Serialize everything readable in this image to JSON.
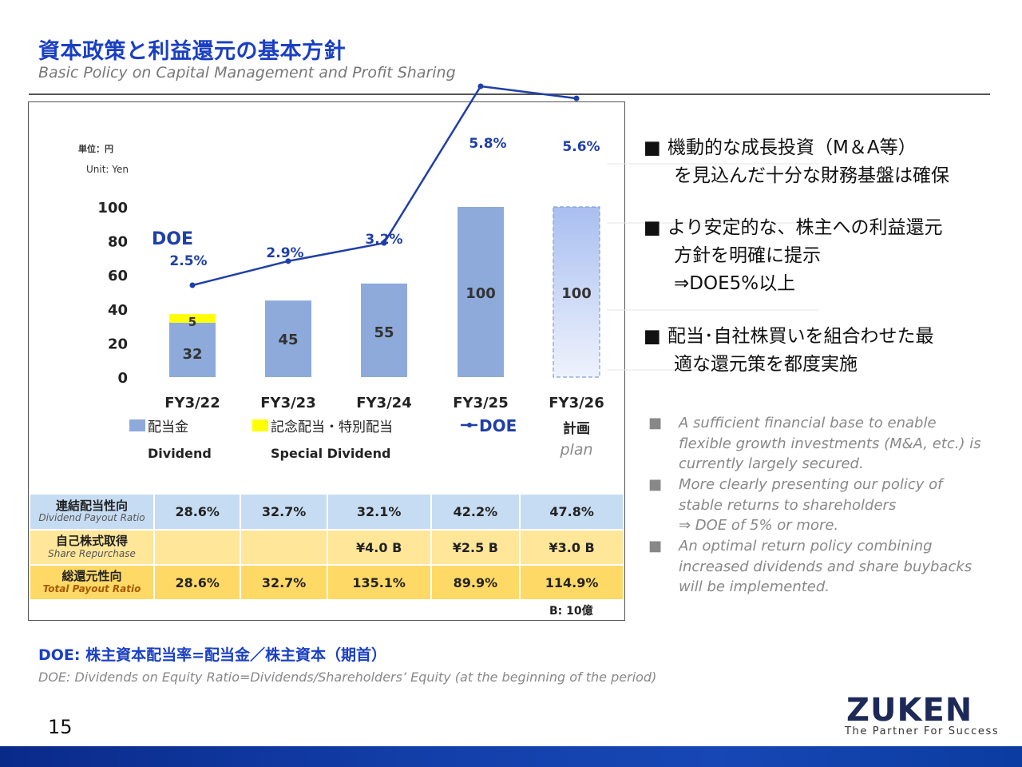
{
  "header": {
    "title": "資本政策と利益還元の基本方針",
    "subtitle": "Basic Policy on Capital Management and Profit Sharing"
  },
  "chart_data": {
    "type": "bar",
    "unit_jp": "単位：円",
    "unit_en": "Unit: Yen",
    "categories": [
      "FY3/22",
      "FY3/23",
      "FY3/24",
      "FY3/25",
      "FY3/26"
    ],
    "plan_label_jp": "計画",
    "plan_label_en": "plan",
    "ylim": [
      0,
      100
    ],
    "y_ticks": [
      0,
      20,
      40,
      60,
      80,
      100
    ],
    "series": [
      {
        "name": "配当金",
        "name_en": "Dividend",
        "type": "bar",
        "color": "#8eaadb",
        "values": [
          32,
          45,
          55,
          100,
          100
        ]
      },
      {
        "name": "記念配当・特別配当",
        "name_en": "Special Dividend",
        "type": "bar",
        "color": "#ffff00",
        "values": [
          5,
          0,
          0,
          0,
          0
        ]
      },
      {
        "name": "DOE",
        "type": "line",
        "color": "#1f3fa8",
        "values": [
          2.5,
          2.9,
          3.2,
          5.8,
          5.6
        ],
        "labels": [
          "2.5%",
          "2.9%",
          "3.2%",
          "5.8%",
          "5.6%"
        ]
      }
    ],
    "doe_axis_label": "DOE",
    "table": {
      "rows": [
        {
          "label_jp": "連結配当性向",
          "label_en": "Dividend Payout Ratio",
          "values": [
            "28.6%",
            "32.7%",
            "32.1%",
            "42.2%",
            "47.8%"
          ]
        },
        {
          "label_jp": "自己株式取得",
          "label_en": "Share Repurchase",
          "values": [
            "",
            "",
            "¥4.0 B",
            "¥2.5 B",
            "¥3.0 B"
          ]
        },
        {
          "label_jp": "総還元性向",
          "label_en": "Total Payout Ratio",
          "values": [
            "28.6%",
            "32.7%",
            "135.1%",
            "89.9%",
            "114.9%"
          ]
        }
      ],
      "unit_note": "B: 10億"
    }
  },
  "bullets_jp": [
    {
      "marker": "■",
      "lines": [
        "機動的な成長投資（M＆A等）",
        "を見込んだ十分な財務基盤は確保"
      ]
    },
    {
      "marker": "■",
      "lines": [
        "より安定的な、株主への利益還元",
        "方針を明確に提示",
        "⇒DOE5%以上"
      ]
    },
    {
      "marker": "■",
      "lines": [
        "配当･自社株買いを組合わせた最",
        "適な還元策を都度実施"
      ]
    }
  ],
  "bullets_en": [
    {
      "marker": "■",
      "lines": [
        "A sufficient financial base to enable",
        "flexible growth investments (M&A, etc.) is",
        "currently largely secured."
      ]
    },
    {
      "marker": "■",
      "lines": [
        "More clearly presenting our policy of",
        "stable returns to shareholders",
        "⇒ DOE of 5% or more."
      ]
    },
    {
      "marker": "■",
      "lines": [
        "An optimal return policy combining",
        "increased dividends and share buybacks",
        "will be implemented."
      ]
    }
  ],
  "footer": {
    "doe_def_jp": "DOE: 株主資本配当率=配当金／株主資本（期首）",
    "doe_def_en": "DOE: Dividends on Equity Ratio=Dividends/Shareholders’ Equity (at the beginning of the period)",
    "page_number": "15",
    "logo": "ZUKEN",
    "tagline": "The Partner For Success"
  }
}
